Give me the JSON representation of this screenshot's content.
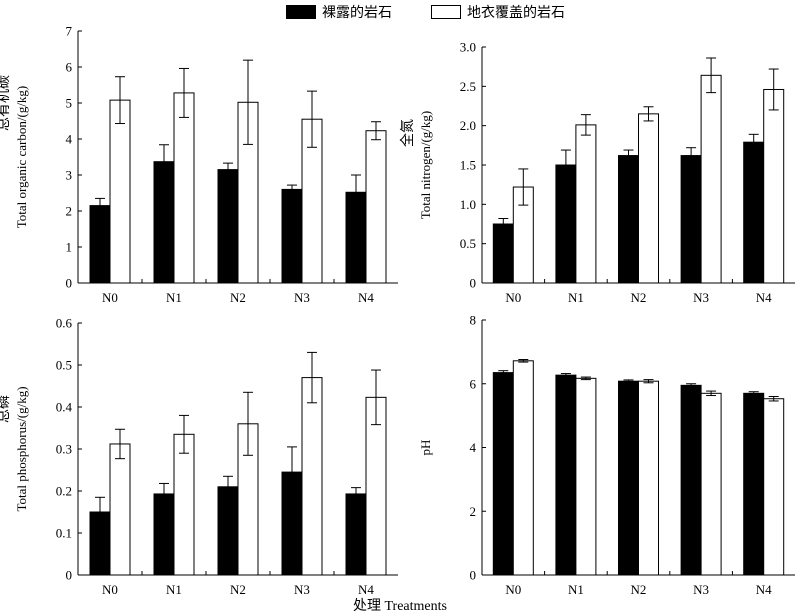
{
  "legend": {
    "bare_label": "裸露的岩石",
    "covered_label": "地衣覆盖的岩石",
    "bare_color": "#000000",
    "covered_color": "#ffffff"
  },
  "x_caption": "处理 Treatments",
  "chart_data": [
    {
      "type": "bar",
      "ylabel_cn": "总有机碳",
      "ylabel_en": "Total organic carbon/(g/kg)",
      "categories": [
        "N0",
        "N1",
        "N2",
        "N3",
        "N4"
      ],
      "ylim": [
        0,
        7
      ],
      "yticks": [
        "0",
        "1",
        "2",
        "3",
        "4",
        "5",
        "6",
        "7"
      ],
      "series": [
        {
          "name": "裸露的岩石",
          "values": [
            2.15,
            3.37,
            3.15,
            2.6,
            2.52
          ],
          "errors": [
            0.2,
            0.47,
            0.18,
            0.12,
            0.48
          ]
        },
        {
          "name": "地衣覆盖的岩石",
          "values": [
            5.08,
            5.28,
            5.02,
            4.55,
            4.23
          ],
          "errors": [
            0.65,
            0.68,
            1.17,
            0.78,
            0.25
          ]
        }
      ]
    },
    {
      "type": "bar",
      "ylabel_cn": "全氮",
      "ylabel_en": "Total nitrogen/(g/kg)",
      "categories": [
        "N0",
        "N1",
        "N2",
        "N3",
        "N4"
      ],
      "ylim": [
        0,
        3.0
      ],
      "yticks": [
        "0",
        "0.5",
        "1.0",
        "1.5",
        "2.0",
        "2.5",
        "3.0"
      ],
      "series": [
        {
          "name": "裸露的岩石",
          "values": [
            0.75,
            1.5,
            1.62,
            1.62,
            1.79
          ],
          "errors": [
            0.07,
            0.19,
            0.07,
            0.1,
            0.1
          ]
        },
        {
          "name": "地衣覆盖的岩石",
          "values": [
            1.22,
            2.01,
            2.15,
            2.64,
            2.46
          ],
          "errors": [
            0.23,
            0.13,
            0.09,
            0.22,
            0.26
          ]
        }
      ]
    },
    {
      "type": "bar",
      "ylabel_cn": "总磷",
      "ylabel_en": "Total phosphorus/(g/kg)",
      "categories": [
        "N0",
        "N1",
        "N2",
        "N3",
        "N4"
      ],
      "ylim": [
        0,
        0.6
      ],
      "yticks": [
        "0",
        "0.1",
        "0.2",
        "0.3",
        "0.4",
        "0.5",
        "0.6"
      ],
      "series": [
        {
          "name": "裸露的岩石",
          "values": [
            0.15,
            0.193,
            0.21,
            0.245,
            0.193
          ],
          "errors": [
            0.035,
            0.025,
            0.025,
            0.06,
            0.015
          ]
        },
        {
          "name": "地衣覆盖的岩石",
          "values": [
            0.312,
            0.335,
            0.36,
            0.47,
            0.423
          ],
          "errors": [
            0.035,
            0.045,
            0.075,
            0.06,
            0.065
          ]
        }
      ]
    },
    {
      "type": "bar",
      "ylabel_cn": "",
      "ylabel_en": "pH",
      "categories": [
        "N0",
        "N1",
        "N2",
        "N3",
        "N4"
      ],
      "ylim": [
        0,
        8
      ],
      "yticks": [
        "0",
        "2",
        "4",
        "6",
        "8"
      ],
      "series": [
        {
          "name": "裸露的岩石",
          "values": [
            6.35,
            6.27,
            6.08,
            5.95,
            5.7
          ],
          "errors": [
            0.06,
            0.05,
            0.04,
            0.05,
            0.05
          ]
        },
        {
          "name": "地衣覆盖的岩石",
          "values": [
            6.72,
            6.17,
            6.08,
            5.7,
            5.53
          ],
          "errors": [
            0.04,
            0.04,
            0.05,
            0.07,
            0.07
          ]
        }
      ]
    }
  ]
}
